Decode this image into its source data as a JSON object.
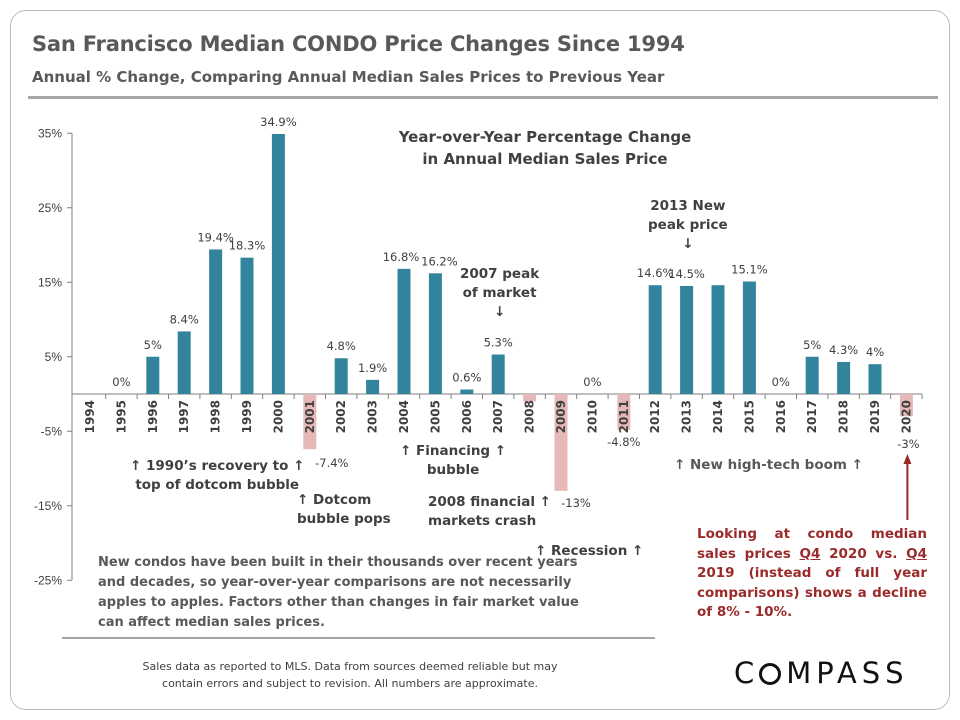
{
  "header": {
    "title": "San Francisco Median CONDO Price Changes Since 1994",
    "subtitle": "Annual % Change, Comparing Annual Median Sales Prices to Previous Year"
  },
  "chart_data": {
    "type": "bar",
    "title_line1": "Year-over-Year Percentage Change",
    "title_line2": "in Annual Median Sales Price",
    "categories": [
      "1994",
      "1995",
      "1996",
      "1997",
      "1998",
      "1999",
      "2000",
      "2001",
      "2002",
      "2003",
      "2004",
      "2005",
      "2006",
      "2007",
      "2008",
      "2009",
      "2010",
      "2011",
      "2012",
      "2013",
      "2014",
      "2015",
      "2016",
      "2017",
      "2018",
      "2019",
      "2020"
    ],
    "values": [
      null,
      0,
      5,
      8.4,
      19.4,
      18.3,
      34.9,
      -7.4,
      4.8,
      1.9,
      16.8,
      16.2,
      0.6,
      5.3,
      -1,
      -13,
      0,
      -4.8,
      14.6,
      14.5,
      14.6,
      15.1,
      0,
      5,
      4.3,
      4,
      -3
    ],
    "data_labels": [
      "",
      "0%",
      "5%",
      "8.4%",
      "19.4%",
      "18.3%",
      "34.9%",
      "-7.4%",
      "4.8%",
      "1.9%",
      "16.8%",
      "16.2%",
      "0.6%",
      "5.3%",
      "",
      "-13%",
      "0%",
      "-4.8%",
      "14.6%",
      "14.5%",
      "",
      "15.1%",
      "0%",
      "5%",
      "4.3%",
      "4%",
      "-3%"
    ],
    "yticks": [
      35,
      25,
      15,
      5,
      -5,
      -15,
      -25
    ],
    "ytick_labels": [
      "35%",
      "25%",
      "15%",
      "5%",
      "-5%",
      "-15%",
      "-25%"
    ],
    "ylim": [
      -25,
      35
    ],
    "colors": {
      "positive": "#31849b",
      "negative": "#e6b9b8",
      "axis": "#7f7f7f",
      "callout_arrow": "#9b2b2b"
    },
    "grid": false
  },
  "annotations": {
    "recovery_line1": "↑ 1990’s recovery to ↑",
    "recovery_line2": "top of dotcom bubble",
    "dotcom_line1": "↑ Dotcom",
    "dotcom_line2": "bubble pops",
    "financing_line1": "↑ Financing ↑",
    "financing_line2": "bubble",
    "peak2007_line1": "2007 peak",
    "peak2007_line2": "of market",
    "peak2007_arrow": "↓",
    "crash_line1": "2008 financial ↑",
    "crash_line2": "markets crash",
    "recession": "↑  Recession  ↑",
    "peak2013_line1": "2013 New",
    "peak2013_line2": "peak price",
    "peak2013_arrow": "↓",
    "hightech": "↑ New high-tech boom ↑"
  },
  "note": "New condos have been built in their thousands over recent years and decades, so year-over-year comparisons are not necessarily apples to apples. Factors other than changes in fair market value can affect median sales prices.",
  "callout": {
    "t1": "Looking at condo median sales prices ",
    "q4a": "Q4",
    "t2": " 2020 vs. ",
    "q4b": "Q4",
    "t3": " 2019 (instead of full year comparisons) shows a decline of 8% - 10%."
  },
  "footer": {
    "line1": "Sales data as reported to MLS. Data from sources deemed reliable but may",
    "line2": "contain errors and subject to revision. All numbers are approximate."
  },
  "logo": "COMPASS"
}
